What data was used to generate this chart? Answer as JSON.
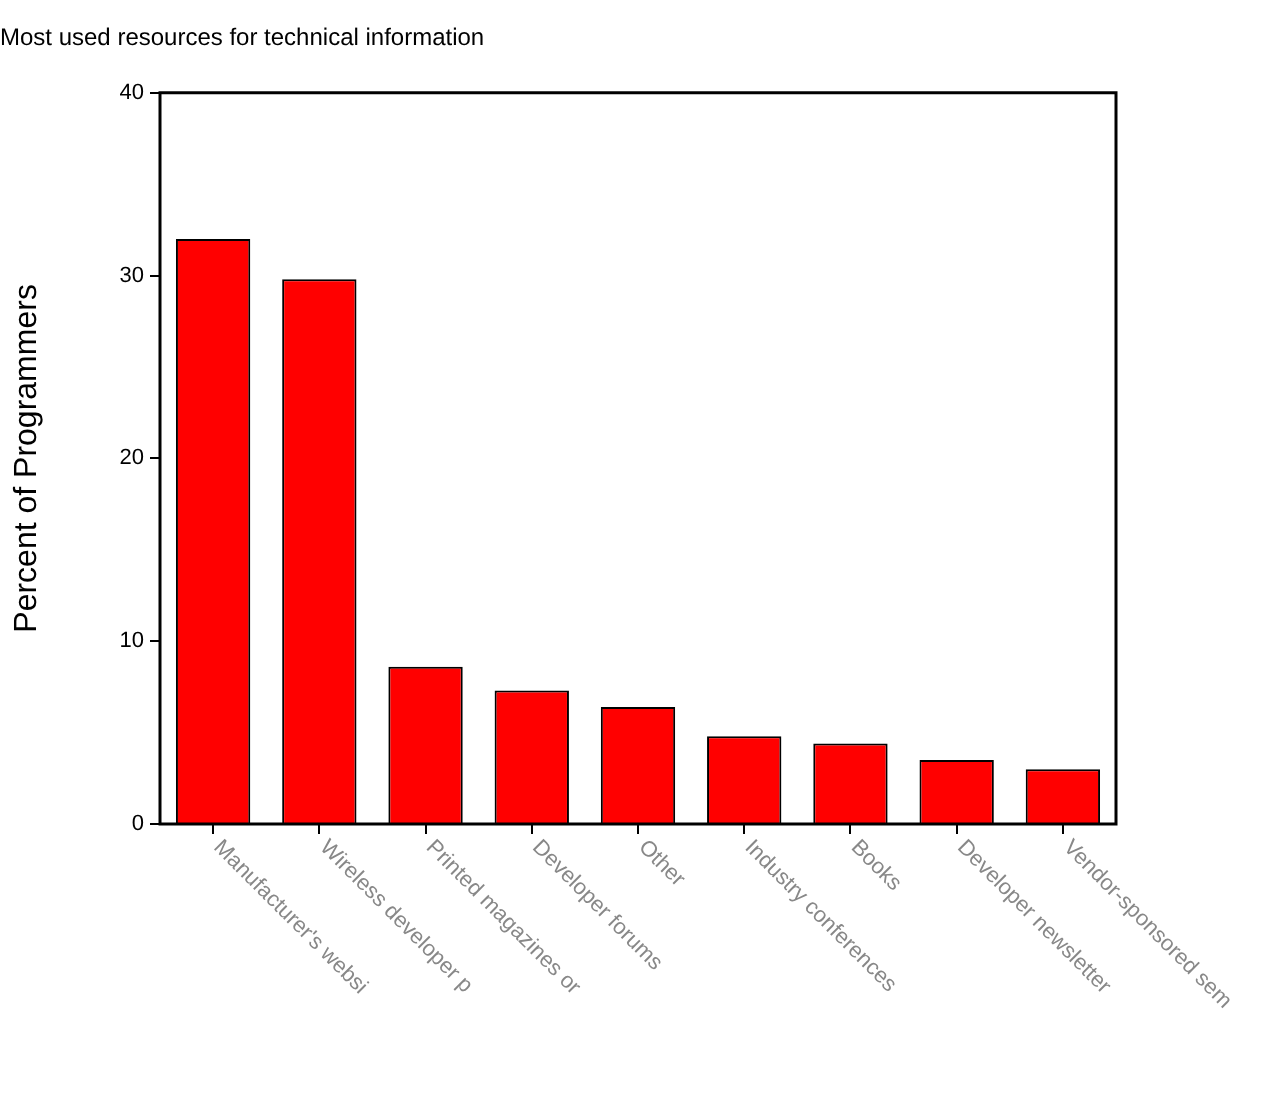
{
  "chart_data": {
    "type": "bar",
    "title": "Most used resources for technical information",
    "ylabel": "Percent of Programmers",
    "categories": [
      "Manufacturer's websi",
      "Wireless developer p",
      "Printed magazines or",
      "Developer forums",
      "Other",
      "Industry conferences",
      "Books",
      "Developer newsletter",
      "Vendor-sponsored sem"
    ],
    "values": [
      32.0,
      29.8,
      8.6,
      7.3,
      6.4,
      4.8,
      4.4,
      3.5,
      3.0
    ],
    "color": "#ff0000",
    "ylim": [
      0,
      40
    ],
    "yticks": [
      0,
      10,
      20,
      30,
      40
    ],
    "grid": false,
    "legend": false
  }
}
